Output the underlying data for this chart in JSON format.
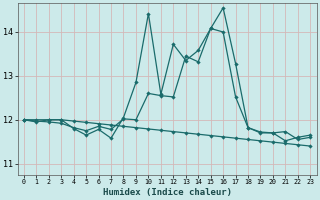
{
  "xlabel": "Humidex (Indice chaleur)",
  "bg_color": "#cceaea",
  "line_color": "#1a6b6b",
  "grid_color": "#b8d8d8",
  "xlim": [
    -0.5,
    23.5
  ],
  "ylim": [
    10.75,
    14.65
  ],
  "xticks": [
    0,
    1,
    2,
    3,
    4,
    5,
    6,
    7,
    8,
    9,
    10,
    11,
    12,
    13,
    14,
    15,
    16,
    17,
    18,
    19,
    20,
    21,
    22,
    23
  ],
  "yticks": [
    11,
    12,
    13,
    14
  ],
  "series1_x": [
    0,
    1,
    2,
    3,
    4,
    5,
    6,
    7,
    8,
    9,
    10,
    11,
    12,
    13,
    14,
    15,
    16,
    17,
    18,
    19,
    20,
    21,
    22,
    23
  ],
  "series1_y": [
    12.0,
    11.97,
    11.95,
    11.92,
    11.82,
    11.75,
    11.85,
    11.78,
    12.02,
    12.0,
    12.6,
    12.55,
    12.52,
    13.45,
    13.32,
    14.08,
    14.55,
    13.28,
    11.82,
    11.72,
    11.7,
    11.73,
    11.55,
    11.6
  ],
  "series2_x": [
    0,
    1,
    2,
    3,
    4,
    5,
    6,
    7,
    8,
    9,
    10,
    11,
    12,
    13,
    14,
    15,
    16,
    17,
    18,
    19,
    20,
    21,
    22,
    23
  ],
  "series2_y": [
    12.0,
    12.0,
    12.0,
    12.0,
    11.97,
    11.94,
    11.91,
    11.88,
    11.85,
    11.82,
    11.79,
    11.76,
    11.73,
    11.7,
    11.67,
    11.64,
    11.61,
    11.58,
    11.55,
    11.52,
    11.49,
    11.46,
    11.43,
    11.4
  ],
  "series3_x": [
    0,
    1,
    2,
    3,
    4,
    5,
    6,
    7,
    8,
    9,
    10,
    11,
    12,
    13,
    14,
    15,
    16,
    17,
    18,
    19,
    20,
    21,
    22,
    23
  ],
  "series3_y": [
    12.0,
    11.95,
    12.0,
    12.0,
    11.8,
    11.65,
    11.78,
    11.58,
    12.05,
    12.85,
    14.42,
    12.58,
    13.72,
    13.35,
    13.58,
    14.08,
    14.0,
    12.52,
    11.82,
    11.7,
    11.7,
    11.52,
    11.6,
    11.65
  ]
}
